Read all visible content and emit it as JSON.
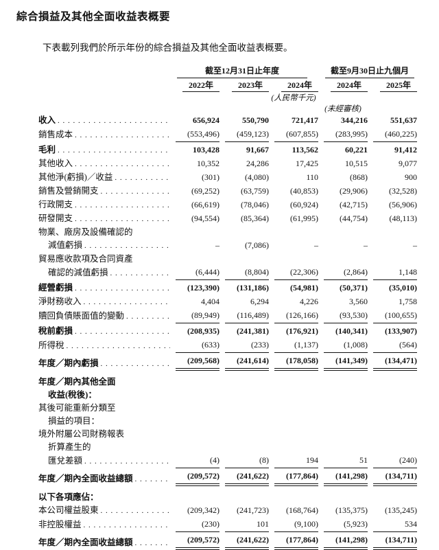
{
  "page": {
    "title": "綜合損益及其他全面收益表概要",
    "intro": "下表載列我們於所示年份的綜合損益及其他全面收益表概要。"
  },
  "table": {
    "col_groups": [
      {
        "label": "截至12月31日止年度",
        "span": 3
      },
      {
        "label": "截至9月30日止九個月",
        "span": 2
      }
    ],
    "columns": [
      "2022年",
      "2023年",
      "2024年",
      "2024年",
      "2025年"
    ],
    "unit_note": "(人民幣千元)",
    "unaudited_note": "(未經審核)",
    "rows": [
      {
        "label": "收入",
        "bold": true,
        "dots": true,
        "values": [
          "656,924",
          "550,790",
          "721,417",
          "344,216",
          "551,637"
        ]
      },
      {
        "label": "銷售成本",
        "dots": true,
        "rule": "single",
        "values": [
          "(553,496)",
          "(459,123)",
          "(607,855)",
          "(283,995)",
          "(460,225)"
        ]
      },
      {
        "label": "毛利",
        "bold": true,
        "dots": true,
        "sp": 1,
        "values": [
          "103,428",
          "91,667",
          "113,562",
          "60,221",
          "91,412"
        ]
      },
      {
        "label": "其他收入",
        "dots": true,
        "values": [
          "10,352",
          "24,286",
          "17,425",
          "10,515",
          "9,077"
        ]
      },
      {
        "label": "其他淨(虧損)／收益",
        "dots": true,
        "values": [
          "(301)",
          "(4,080)",
          "110",
          "(868)",
          "900"
        ]
      },
      {
        "label": "銷售及營銷開支",
        "dots": true,
        "values": [
          "(69,252)",
          "(63,759)",
          "(40,853)",
          "(29,906)",
          "(32,528)"
        ]
      },
      {
        "label": "行政開支",
        "dots": true,
        "values": [
          "(66,619)",
          "(78,046)",
          "(60,924)",
          "(42,715)",
          "(56,906)"
        ]
      },
      {
        "label": "研發開支",
        "dots": true,
        "values": [
          "(94,554)",
          "(85,364)",
          "(61,995)",
          "(44,754)",
          "(48,113)"
        ]
      },
      {
        "label": "物業、廠房及設備確認的",
        "values": []
      },
      {
        "label": "減值虧損",
        "indent": 1,
        "dots": true,
        "values": [
          "–",
          "(7,086)",
          "–",
          "–",
          "–"
        ]
      },
      {
        "label": "貿易應收款項及合同資產",
        "values": []
      },
      {
        "label": "確認的減值虧損",
        "indent": 1,
        "dots": true,
        "rule": "single",
        "values": [
          "(6,444)",
          "(8,804)",
          "(22,306)",
          "(2,864)",
          "1,148"
        ]
      },
      {
        "label": "經營虧損",
        "bold": true,
        "dots": true,
        "sp": 1,
        "values": [
          "(123,390)",
          "(131,186)",
          "(54,981)",
          "(50,371)",
          "(35,010)"
        ]
      },
      {
        "label": "淨財務收入",
        "dots": true,
        "values": [
          "4,404",
          "6,294",
          "4,226",
          "3,560",
          "1,758"
        ]
      },
      {
        "label": "贖回負債賬面值的變動",
        "dots": true,
        "rule": "single",
        "values": [
          "(89,949)",
          "(116,489)",
          "(126,166)",
          "(93,530)",
          "(100,655)"
        ]
      },
      {
        "label": "稅前虧損",
        "bold": true,
        "dots": true,
        "sp": 1,
        "values": [
          "(208,935)",
          "(241,381)",
          "(176,921)",
          "(140,341)",
          "(133,907)"
        ]
      },
      {
        "label": "所得稅",
        "dots": true,
        "rule": "single",
        "values": [
          "(633)",
          "(233)",
          "(1,137)",
          "(1,008)",
          "(564)"
        ]
      },
      {
        "label": "年度／期內虧損",
        "bold": true,
        "dots": true,
        "rule": "double",
        "sp": 1,
        "values": [
          "(209,568)",
          "(241,614)",
          "(178,058)",
          "(141,349)",
          "(134,471)"
        ]
      },
      {
        "label": "年度／期內其他全面",
        "bold": true,
        "sp": 2,
        "values": []
      },
      {
        "label": "收益(稅後)：",
        "bold": true,
        "indent": 1,
        "values": []
      },
      {
        "label": "其後可能重新分類至",
        "values": []
      },
      {
        "label": "損益的項目：",
        "indent": 1,
        "values": []
      },
      {
        "label": "境外附屬公司財務報表",
        "values": []
      },
      {
        "label": "折算產生的",
        "indent": 1,
        "values": []
      },
      {
        "label": "匯兌差額",
        "indent": 1,
        "dots": true,
        "rule": "single",
        "values": [
          "(4)",
          "(8)",
          "194",
          "51",
          "(240)"
        ]
      },
      {
        "label": "年度／期內全面收益總額",
        "bold": true,
        "dots": true,
        "rule": "double",
        "sp": 1,
        "values": [
          "(209,572)",
          "(241,622)",
          "(177,864)",
          "(141,298)",
          "(134,711)"
        ]
      },
      {
        "label": "以下各項應佔：",
        "bold": true,
        "sp": 2,
        "values": []
      },
      {
        "label": "本公司權益股東",
        "dots": true,
        "values": [
          "(209,342)",
          "(241,723)",
          "(168,764)",
          "(135,375)",
          "(135,245)"
        ]
      },
      {
        "label": "非控股權益",
        "dots": true,
        "rule": "single",
        "values": [
          "(230)",
          "101",
          "(9,100)",
          "(5,923)",
          "534"
        ]
      },
      {
        "label": "年度／期內全面收益總額",
        "bold": true,
        "dots": true,
        "rule": "double",
        "sp": 1,
        "values": [
          "(209,572)",
          "(241,622)",
          "(177,864)",
          "(141,298)",
          "(134,711)"
        ]
      }
    ]
  }
}
